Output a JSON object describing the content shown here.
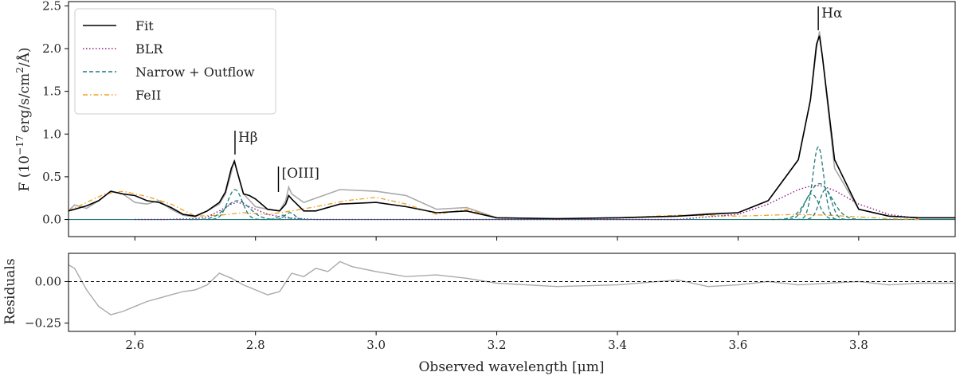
{
  "chart_data": [
    {
      "type": "line",
      "panel": "spectrum-fit",
      "xlabel": "",
      "ylabel": "F (10^-17 erg/s/cm^2/Å)",
      "ylabel_parts": {
        "prefix": "F (10",
        "exp1": "−17",
        "mid": "erg/s/cm",
        "exp2": "2",
        "suffix": "/Å)"
      },
      "xlim": [
        2.49,
        3.96
      ],
      "ylim": [
        -0.2,
        2.55
      ],
      "yticks": [
        0.0,
        0.5,
        1.0,
        1.5,
        2.0,
        2.5
      ],
      "ytick_labels": [
        "0.0",
        "0.5",
        "1.0",
        "1.5",
        "2.0",
        "2.5"
      ],
      "legend_position": "top-left",
      "legend": [
        {
          "label": "Fit",
          "color": "#000000",
          "style": "solid"
        },
        {
          "label": "BLR",
          "color": "#8b1a89",
          "style": "dotted"
        },
        {
          "label": "Narrow + Outflow",
          "color": "#1f7a7a",
          "style": "dashed"
        },
        {
          "label": "FeII",
          "color": "#f0a020",
          "style": "dashdot"
        }
      ],
      "annotations": [
        {
          "label": "Hβ",
          "x": 2.766,
          "y": 1.1
        },
        {
          "label": "[OIII]",
          "x": 2.838,
          "y": 0.73
        },
        {
          "label": "Hα",
          "x": 3.733,
          "y": 2.55
        }
      ],
      "series": [
        {
          "name": "Data",
          "color": "#aaaaaa",
          "kind": "data",
          "x": [
            2.49,
            2.5,
            2.52,
            2.54,
            2.56,
            2.58,
            2.6,
            2.62,
            2.64,
            2.66,
            2.68,
            2.7,
            2.72,
            2.74,
            2.75,
            2.76,
            2.765,
            2.77,
            2.78,
            2.8,
            2.82,
            2.84,
            2.85,
            2.855,
            2.86,
            2.88,
            2.9,
            2.94,
            3.0,
            3.05,
            3.1,
            3.15,
            3.2,
            3.3,
            3.4,
            3.5,
            3.55,
            3.6,
            3.65,
            3.7,
            3.72,
            3.73,
            3.735,
            3.74,
            3.76,
            3.8,
            3.85,
            3.9,
            3.96
          ],
          "y": [
            0.1,
            0.17,
            0.13,
            0.22,
            0.33,
            0.3,
            0.2,
            0.18,
            0.22,
            0.12,
            0.05,
            0.03,
            0.1,
            0.18,
            0.3,
            0.55,
            0.7,
            0.55,
            0.3,
            0.15,
            0.12,
            0.1,
            0.22,
            0.38,
            0.3,
            0.2,
            0.25,
            0.35,
            0.33,
            0.28,
            0.12,
            0.14,
            0.02,
            0.01,
            0.02,
            0.04,
            0.07,
            0.08,
            0.22,
            0.7,
            1.4,
            2.0,
            2.2,
            1.9,
            0.6,
            0.12,
            0.04,
            0.02,
            0.02
          ]
        },
        {
          "name": "Fit",
          "color": "#000000",
          "kind": "fit",
          "x": [
            2.49,
            2.5,
            2.52,
            2.54,
            2.56,
            2.58,
            2.6,
            2.62,
            2.64,
            2.66,
            2.68,
            2.7,
            2.72,
            2.74,
            2.75,
            2.76,
            2.765,
            2.77,
            2.78,
            2.79,
            2.8,
            2.82,
            2.84,
            2.85,
            2.855,
            2.86,
            2.88,
            2.9,
            2.94,
            3.0,
            3.05,
            3.1,
            3.15,
            3.2,
            3.3,
            3.4,
            3.5,
            3.55,
            3.6,
            3.65,
            3.7,
            3.72,
            3.73,
            3.735,
            3.74,
            3.76,
            3.8,
            3.85,
            3.9,
            3.96
          ],
          "y": [
            0.1,
            0.12,
            0.16,
            0.22,
            0.33,
            0.3,
            0.28,
            0.22,
            0.2,
            0.14,
            0.06,
            0.04,
            0.1,
            0.2,
            0.32,
            0.6,
            0.68,
            0.55,
            0.3,
            0.28,
            0.24,
            0.12,
            0.1,
            0.18,
            0.28,
            0.24,
            0.1,
            0.1,
            0.18,
            0.2,
            0.15,
            0.08,
            0.1,
            0.02,
            0.01,
            0.02,
            0.04,
            0.06,
            0.08,
            0.22,
            0.7,
            1.4,
            2.05,
            2.15,
            1.9,
            0.7,
            0.12,
            0.04,
            0.02,
            0.02
          ]
        },
        {
          "name": "BLR",
          "color": "#8b1a89",
          "kind": "blr",
          "x": [
            2.6,
            2.65,
            2.7,
            2.72,
            2.74,
            2.76,
            2.77,
            2.78,
            2.8,
            2.82,
            2.85,
            2.9,
            3.3,
            3.5,
            3.6,
            3.65,
            3.7,
            3.72,
            3.73,
            3.74,
            3.76,
            3.8,
            3.85,
            3.9
          ],
          "y": [
            0,
            0,
            0.01,
            0.03,
            0.1,
            0.18,
            0.2,
            0.18,
            0.12,
            0.06,
            0.02,
            0,
            0,
            0,
            0.06,
            0.18,
            0.35,
            0.39,
            0.4,
            0.39,
            0.34,
            0.18,
            0.06,
            0.01
          ]
        },
        {
          "name": "FeII",
          "color": "#f0a020",
          "kind": "feii",
          "x": [
            2.49,
            2.55,
            2.58,
            2.62,
            2.66,
            2.7,
            2.74,
            2.78,
            2.82,
            2.86,
            2.9,
            2.95,
            3.0,
            3.05,
            3.1,
            3.15,
            3.2,
            3.3,
            3.4,
            3.5,
            3.6,
            3.65,
            3.7,
            3.75,
            3.8,
            3.85,
            3.9
          ],
          "y": [
            0.1,
            0.3,
            0.33,
            0.27,
            0.18,
            0.04,
            0.05,
            0.08,
            0.06,
            0.1,
            0.15,
            0.22,
            0.26,
            0.18,
            0.06,
            0.12,
            0.02,
            0.01,
            0.02,
            0.05,
            0.04,
            0.05,
            0.06,
            0.05,
            0.03,
            0.01,
            0.0
          ]
        }
      ],
      "narrow_lines": [
        {
          "center": 2.766,
          "peak": 0.35,
          "width": 0.012
        },
        {
          "center": 2.77,
          "peak": 0.22,
          "width": 0.02
        },
        {
          "center": 2.845,
          "peak": 0.05,
          "width": 0.008
        },
        {
          "center": 2.857,
          "peak": 0.08,
          "width": 0.008
        },
        {
          "center": 3.733,
          "peak": 0.85,
          "width": 0.009
        },
        {
          "center": 3.735,
          "peak": 0.42,
          "width": 0.02
        },
        {
          "center": 3.745,
          "peak": 0.35,
          "width": 0.01
        },
        {
          "center": 3.722,
          "peak": 0.3,
          "width": 0.012
        }
      ]
    },
    {
      "type": "line",
      "panel": "residuals",
      "xlabel": "Observed wavelength [μm]",
      "ylabel": "Residuals",
      "xlim": [
        2.49,
        3.96
      ],
      "ylim": [
        -0.3,
        0.17
      ],
      "yticks": [
        -0.25,
        0.0
      ],
      "ytick_labels": [
        "−0.25",
        "0.00"
      ],
      "xticks": [
        2.6,
        2.8,
        3.0,
        3.2,
        3.4,
        3.6,
        3.8
      ],
      "xtick_labels": [
        "2.6",
        "2.8",
        "3.0",
        "3.2",
        "3.4",
        "3.6",
        "3.8"
      ],
      "zero_line": true,
      "series": [
        {
          "name": "Residuals",
          "color": "#aaaaaa",
          "x": [
            2.49,
            2.5,
            2.52,
            2.54,
            2.56,
            2.58,
            2.6,
            2.62,
            2.64,
            2.66,
            2.68,
            2.7,
            2.72,
            2.74,
            2.76,
            2.78,
            2.8,
            2.82,
            2.84,
            2.86,
            2.88,
            2.9,
            2.92,
            2.94,
            2.96,
            3.0,
            3.05,
            3.1,
            3.15,
            3.2,
            3.3,
            3.4,
            3.5,
            3.55,
            3.6,
            3.65,
            3.7,
            3.75,
            3.8,
            3.85,
            3.9,
            3.96
          ],
          "y": [
            0.1,
            0.08,
            -0.05,
            -0.15,
            -0.2,
            -0.18,
            -0.15,
            -0.12,
            -0.1,
            -0.08,
            -0.06,
            -0.05,
            -0.02,
            0.05,
            0.02,
            -0.02,
            -0.05,
            -0.08,
            -0.06,
            0.05,
            0.03,
            0.08,
            0.06,
            0.12,
            0.09,
            0.06,
            0.03,
            0.04,
            0.02,
            -0.01,
            -0.03,
            -0.02,
            0.01,
            -0.03,
            -0.02,
            0.0,
            -0.02,
            -0.01,
            0.0,
            -0.02,
            -0.01,
            -0.01
          ]
        }
      ]
    }
  ]
}
